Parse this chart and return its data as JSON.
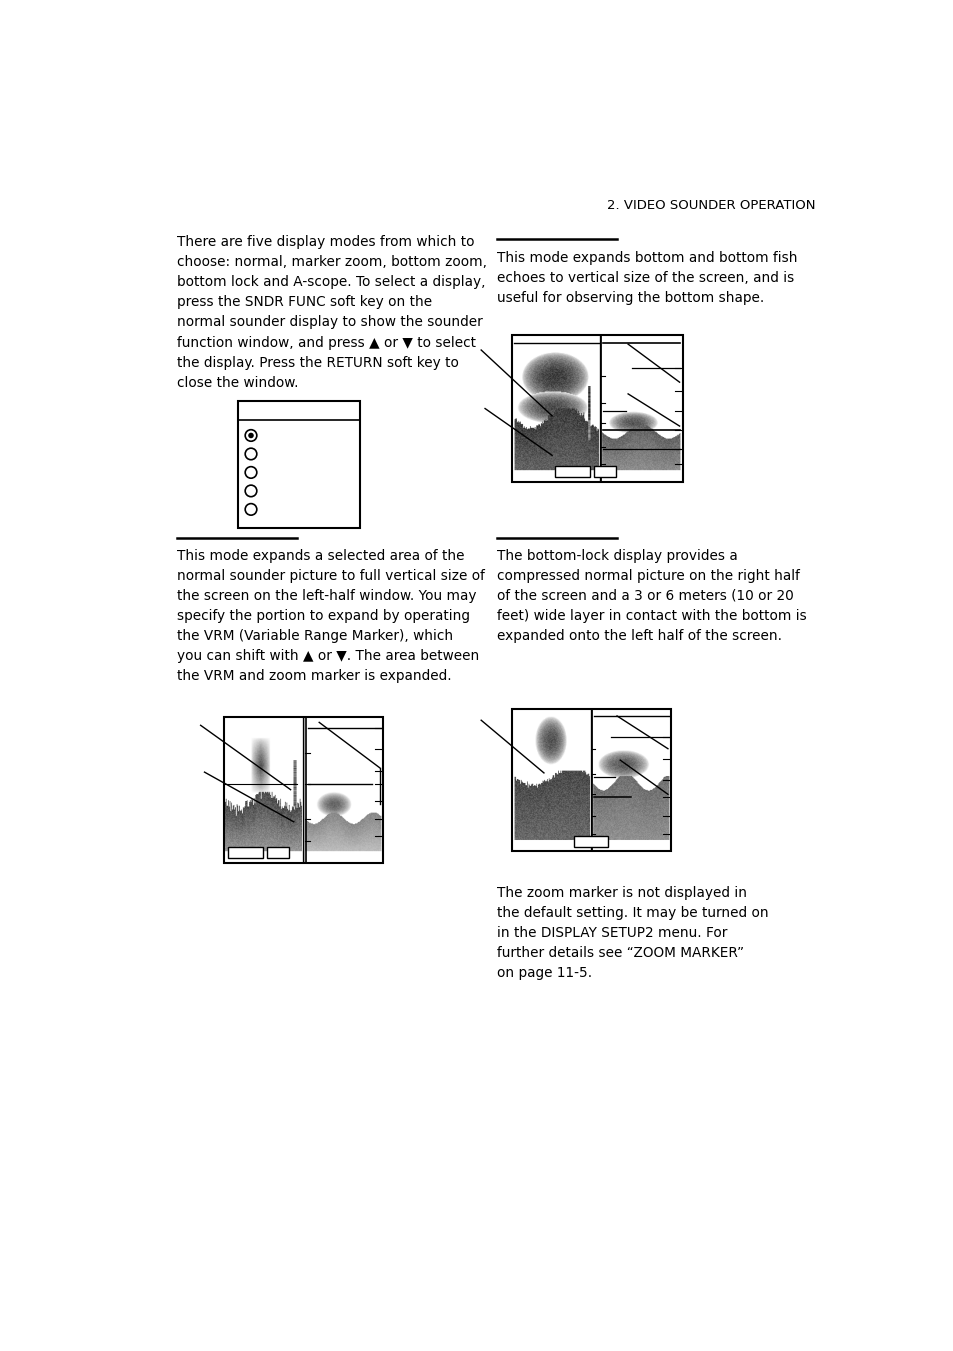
{
  "page_header": "2. VIDEO SOUNDER OPERATION",
  "bg_color": "#ffffff",
  "text_color": "#000000",
  "left_col_text_top": "There are five display modes from which to\nchoose: normal, marker zoom, bottom zoom,\nbottom lock and A-scope. To select a display,\npress the SNDR FUNC soft key on the\nnormal sounder display to show the sounder\nfunction window, and press ▲ or ▼ to select\nthe display. Press the RETURN soft key to\nclose the window.",
  "right_col_text_top": "This mode expands bottom and bottom fish\nechoes to vertical size of the screen, and is\nuseful for observing the bottom shape.",
  "left_col_text_mid": "This mode expands a selected area of the\nnormal sounder picture to full vertical size of\nthe screen on the left-half window. You may\nspecify the portion to expand by operating\nthe VRM (Variable Range Marker), which\nyou can shift with ▲ or ▼. The area between\nthe VRM and zoom marker is expanded.",
  "right_col_text_mid": "The bottom-lock display provides a\ncompressed normal picture on the right half\nof the screen and a 3 or 6 meters (10 or 20\nfeet) wide layer in contact with the bottom is\nexpanded onto the left half of the screen.",
  "right_col_text_bot": "The zoom marker is not displayed in\nthe default setting. It may be turned on\nin the DISPLAY SETUP2 menu. For\nfurther details see “ZOOM MARKER”\non page 11-5."
}
